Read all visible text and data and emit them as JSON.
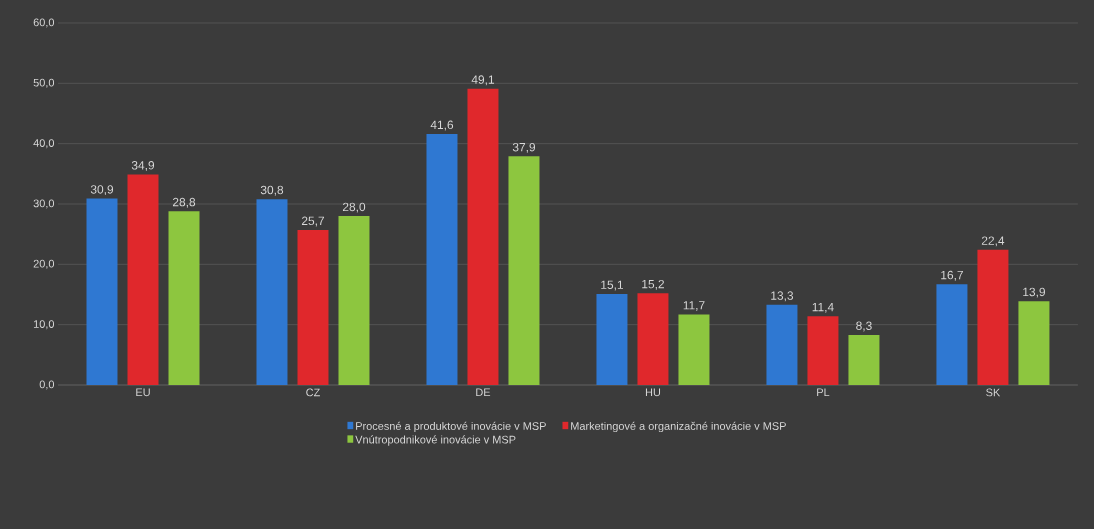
{
  "chart_data": {
    "type": "bar",
    "categories": [
      "EU",
      "CZ",
      "DE",
      "HU",
      "PL",
      "SK"
    ],
    "series": [
      {
        "name": "Procesné a produktové inovácie v MSP",
        "color": "#2f78d2",
        "values": [
          30.9,
          30.8,
          41.6,
          15.1,
          13.3,
          16.7
        ],
        "value_labels": [
          "30,9",
          "30,8",
          "41,6",
          "15,1",
          "13,3",
          "16,7"
        ]
      },
      {
        "name": "Marketingové a organizačné inovácie v MSP",
        "color": "#e0282c",
        "values": [
          34.9,
          25.7,
          49.1,
          15.2,
          11.4,
          22.4
        ],
        "value_labels": [
          "34,9",
          "25,7",
          "49,1",
          "15,2",
          "11,4",
          "22,4"
        ]
      },
      {
        "name": "Vnútropodnikové inovácie v MSP",
        "color": "#8dc63f",
        "values": [
          28.8,
          28.0,
          37.9,
          11.7,
          8.3,
          13.9
        ],
        "value_labels": [
          "28,8",
          "28,0",
          "37,9",
          "11,7",
          "8,3",
          "13,9"
        ]
      }
    ],
    "ylim": [
      0,
      60
    ],
    "yticks": [
      {
        "value": 0,
        "label": "0,0"
      },
      {
        "value": 10,
        "label": "10,0"
      },
      {
        "value": 20,
        "label": "20,0"
      },
      {
        "value": 30,
        "label": "30,0"
      },
      {
        "value": 40,
        "label": "40,0"
      },
      {
        "value": 50,
        "label": "50,0"
      },
      {
        "value": 60,
        "label": "60,0"
      }
    ],
    "grid": "y",
    "legend": "bottom"
  }
}
